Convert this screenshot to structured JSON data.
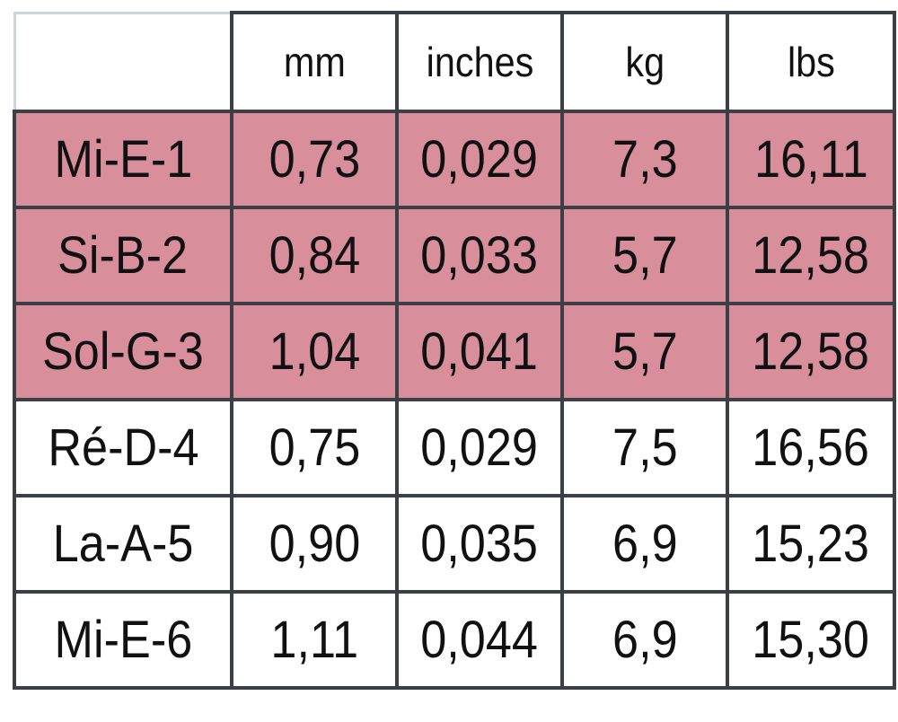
{
  "table": {
    "headers": [
      "",
      "mm",
      "inches",
      "kg",
      "lbs"
    ],
    "highlight_color": "#d98f9b",
    "rows": [
      {
        "highlighted": true,
        "cells": [
          "Mi-E-1",
          "0,73",
          "0,029",
          "7,3",
          "16,11"
        ]
      },
      {
        "highlighted": true,
        "cells": [
          "Si-B-2",
          "0,84",
          "0,033",
          "5,7",
          "12,58"
        ]
      },
      {
        "highlighted": true,
        "cells": [
          "Sol-G-3",
          "1,04",
          "0,041",
          "5,7",
          "12,58"
        ]
      },
      {
        "highlighted": false,
        "cells": [
          "Ré-D-4",
          "0,75",
          "0,029",
          "7,5",
          "16,56"
        ]
      },
      {
        "highlighted": false,
        "cells": [
          "La-A-5",
          "0,90",
          "0,035",
          "6,9",
          "15,23"
        ]
      },
      {
        "highlighted": false,
        "cells": [
          "Mi-E-6",
          "1,11",
          "0,044",
          "6,9",
          "15,30"
        ]
      }
    ]
  }
}
